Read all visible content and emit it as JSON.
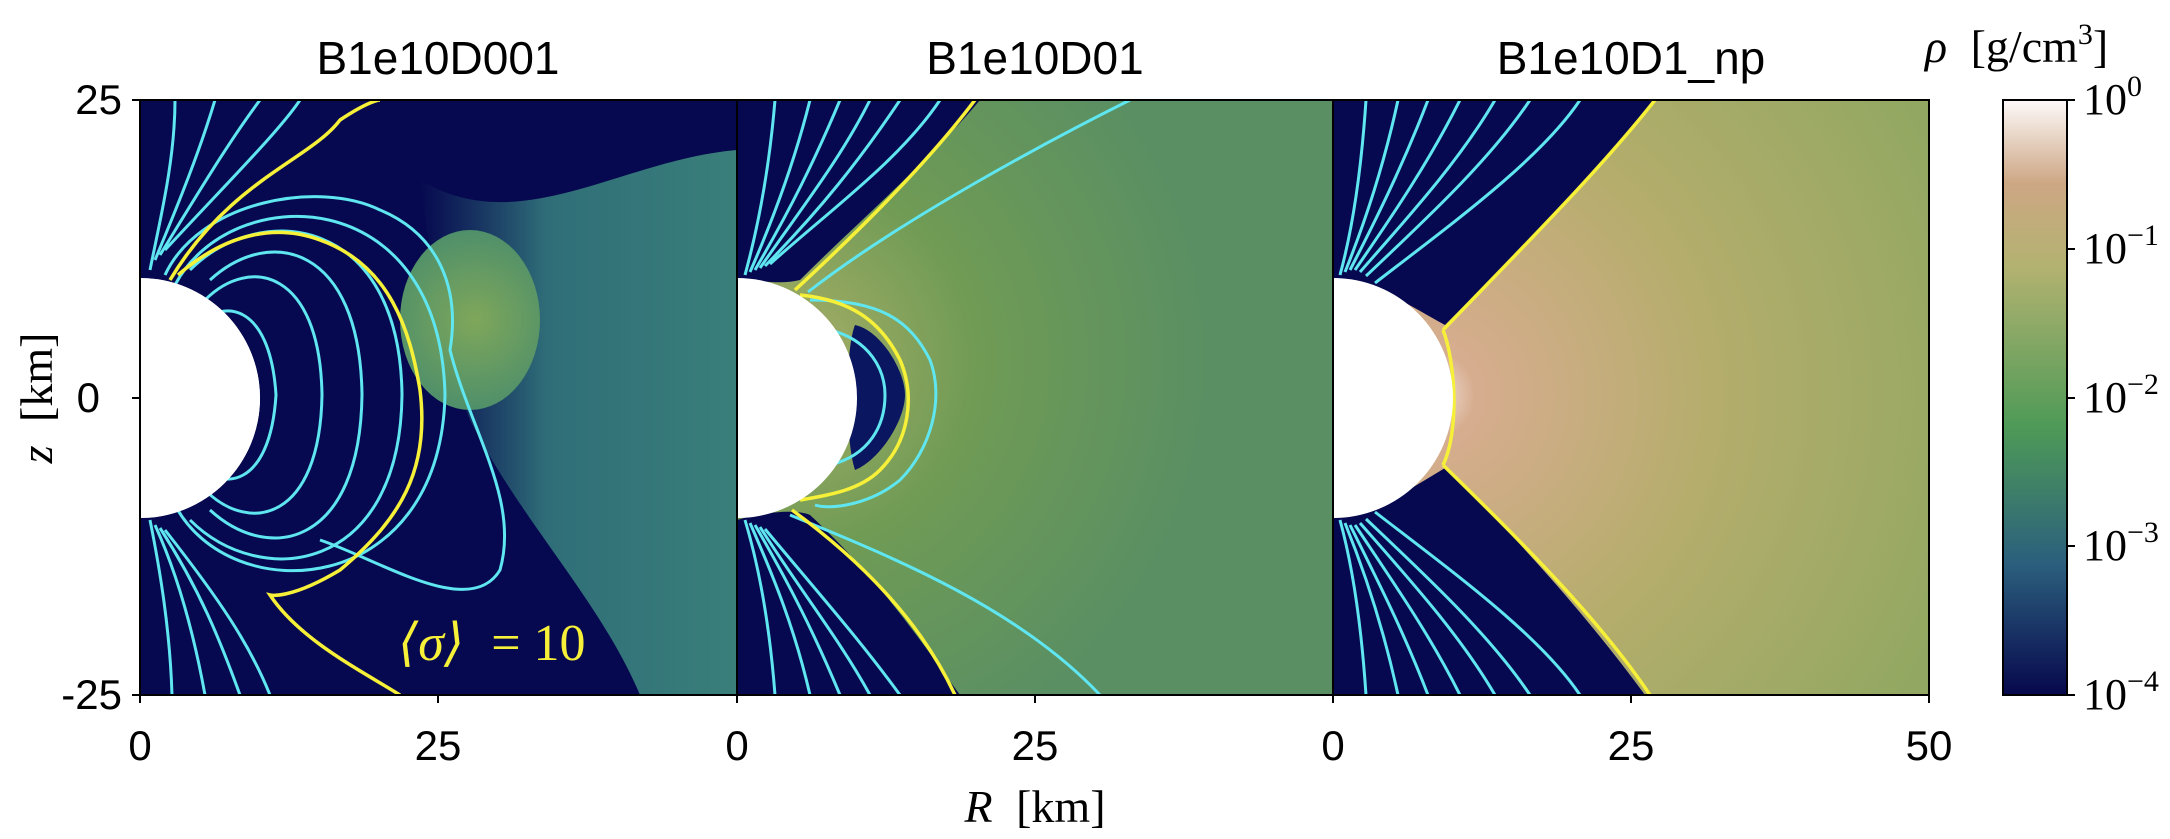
{
  "chart_data": {
    "type": "heatmap",
    "xlabel_symbol": "R",
    "xlabel_unit": "[km]",
    "ylabel_symbol": "z",
    "ylabel_unit": "[km]",
    "xlim": [
      0,
      50
    ],
    "ylim": [
      -25,
      25
    ],
    "colorbar_scale": "log",
    "panels": [
      {
        "title": "B1e10D001",
        "x_ticks": [
          "0",
          "25"
        ],
        "y_ticks": [
          "25",
          "0",
          "-25"
        ],
        "annotation_prefix": "⟨σ⟩",
        "annotation_suffix": "= 10",
        "background": "low-density magnetosphere with closed field loops",
        "neutron_star_radius_km": 10
      },
      {
        "title": "B1e10D01",
        "x_ticks": [
          "0",
          "25"
        ],
        "background": "disk-like outflow, medium density",
        "neutron_star_radius_km": 10
      },
      {
        "title": "B1e10D1_np",
        "x_ticks": [
          "0",
          "25",
          "50"
        ],
        "background": "dense equatorial outflow",
        "neutron_star_radius_km": 10
      }
    ],
    "colorbar": {
      "label_symbol": "ρ",
      "label_unit": "[g/cm",
      "label_unit_exp": "3",
      "label_unit_close": "]",
      "ticks": [
        {
          "base": "10",
          "exp": "0",
          "value": 1
        },
        {
          "base": "10",
          "exp": "−1",
          "value": 0.1
        },
        {
          "base": "10",
          "exp": "−2",
          "value": 0.01
        },
        {
          "base": "10",
          "exp": "−3",
          "value": 0.001
        },
        {
          "base": "10",
          "exp": "−4",
          "value": 0.0001
        }
      ],
      "colors": [
        "#07084d",
        "#2b5f7d",
        "#4e9a57",
        "#b3b270",
        "#cda784",
        "#fdf9f9"
      ]
    },
    "line_colors": {
      "field_lines": "#5fe6f0",
      "sigma_contour": "#f7f038",
      "annotation": "#f7f038"
    }
  }
}
